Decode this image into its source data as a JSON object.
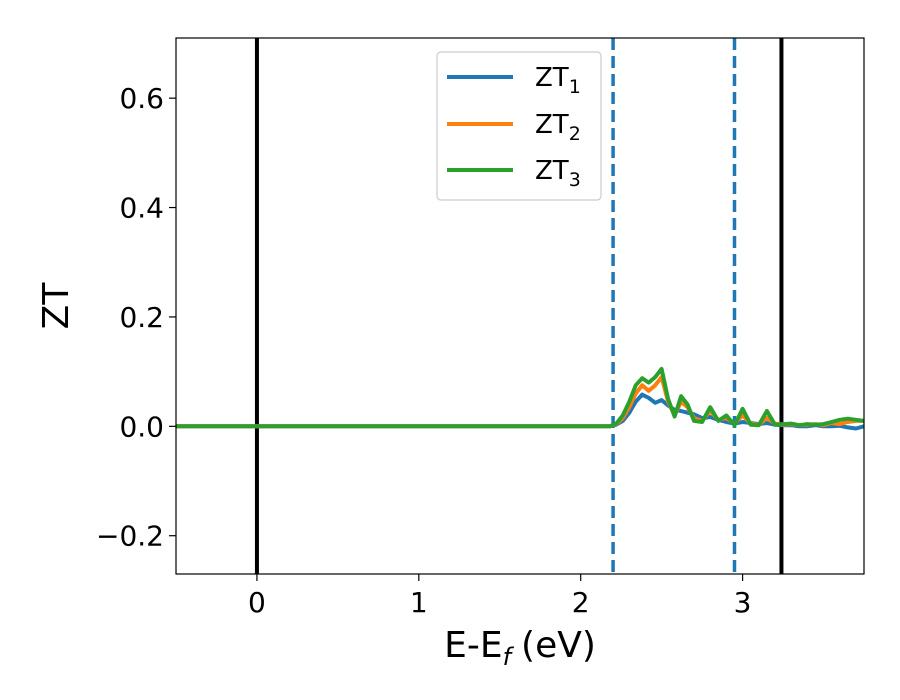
{
  "chart_data": {
    "type": "line",
    "xlabel": "E-E",
    "xlabel_sub": "f",
    "xlabel_unit": "(eV)",
    "ylabel": "ZT",
    "xlim": [
      -0.5,
      3.75
    ],
    "ylim": [
      -0.27,
      0.71
    ],
    "x_ticks": [
      0,
      1,
      2,
      3
    ],
    "x_tick_labels": [
      "0",
      "1",
      "2",
      "3"
    ],
    "y_ticks": [
      -0.2,
      0.0,
      0.2,
      0.4,
      0.6
    ],
    "y_tick_labels": [
      "−0.2",
      "0.0",
      "0.2",
      "0.4",
      "0.6"
    ],
    "grid": false,
    "legend": {
      "placement": "top-center",
      "entries": [
        {
          "base": "ZT",
          "sub": "1"
        },
        {
          "base": "ZT",
          "sub": "2"
        },
        {
          "base": "ZT",
          "sub": "3"
        }
      ]
    },
    "vlines": [
      {
        "x": 0.0,
        "style": "solid",
        "color": "#000000"
      },
      {
        "x": 2.2,
        "style": "dashed",
        "color": "#1f77b4"
      },
      {
        "x": 2.95,
        "style": "dashed",
        "color": "#1f77b4"
      },
      {
        "x": 3.24,
        "style": "solid",
        "color": "#000000"
      }
    ],
    "series": [
      {
        "color": "#1f77b4",
        "x": [
          -0.5,
          2.18,
          2.22,
          2.26,
          2.3,
          2.34,
          2.38,
          2.42,
          2.46,
          2.5,
          2.54,
          2.58,
          2.62,
          2.66,
          2.7,
          2.75,
          2.8,
          2.85,
          2.9,
          2.95,
          3.0,
          3.05,
          3.1,
          3.15,
          3.2,
          3.25,
          3.3,
          3.35,
          3.4,
          3.45,
          3.5,
          3.55,
          3.6,
          3.65,
          3.7,
          3.75
        ],
        "y": [
          0.0,
          0.0,
          0.003,
          0.01,
          0.025,
          0.045,
          0.058,
          0.052,
          0.043,
          0.048,
          0.038,
          0.03,
          0.028,
          0.025,
          0.022,
          0.015,
          0.017,
          0.012,
          0.008,
          0.005,
          0.008,
          0.006,
          0.004,
          0.006,
          0.003,
          0.002,
          0.002,
          0.0,
          0.0,
          0.002,
          0.0,
          0.0,
          0.001,
          -0.002,
          -0.004,
          0.0
        ]
      },
      {
        "color": "#ff7f0e",
        "x": [
          -0.5,
          2.18,
          2.22,
          2.26,
          2.3,
          2.34,
          2.38,
          2.42,
          2.46,
          2.5,
          2.54,
          2.58,
          2.62,
          2.66,
          2.7,
          2.75,
          2.8,
          2.85,
          2.9,
          2.95,
          3.0,
          3.05,
          3.1,
          3.15,
          3.2,
          3.25,
          3.3,
          3.35,
          3.4,
          3.45,
          3.5,
          3.55,
          3.6,
          3.65,
          3.7,
          3.75
        ],
        "y": [
          0.0,
          0.0,
          0.004,
          0.015,
          0.035,
          0.06,
          0.075,
          0.065,
          0.075,
          0.09,
          0.045,
          0.02,
          0.045,
          0.035,
          0.015,
          0.01,
          0.028,
          0.012,
          0.015,
          0.005,
          0.02,
          0.005,
          0.003,
          0.015,
          0.005,
          0.003,
          0.004,
          0.002,
          0.003,
          0.004,
          0.002,
          0.006,
          0.004,
          0.008,
          0.01,
          0.01
        ]
      },
      {
        "color": "#2ca02c",
        "x": [
          -0.5,
          2.18,
          2.22,
          2.26,
          2.3,
          2.34,
          2.38,
          2.42,
          2.46,
          2.5,
          2.54,
          2.58,
          2.62,
          2.66,
          2.7,
          2.75,
          2.8,
          2.85,
          2.9,
          2.95,
          3.0,
          3.05,
          3.1,
          3.15,
          3.2,
          3.25,
          3.3,
          3.35,
          3.4,
          3.45,
          3.5,
          3.55,
          3.6,
          3.65,
          3.7,
          3.75
        ],
        "y": [
          0.0,
          0.0,
          0.005,
          0.02,
          0.045,
          0.075,
          0.088,
          0.08,
          0.09,
          0.105,
          0.05,
          0.018,
          0.055,
          0.04,
          0.01,
          0.008,
          0.035,
          0.01,
          0.02,
          0.002,
          0.032,
          0.003,
          0.002,
          0.028,
          0.003,
          0.004,
          0.005,
          0.002,
          0.004,
          0.003,
          0.004,
          0.008,
          0.012,
          0.014,
          0.012,
          0.01
        ]
      }
    ]
  }
}
